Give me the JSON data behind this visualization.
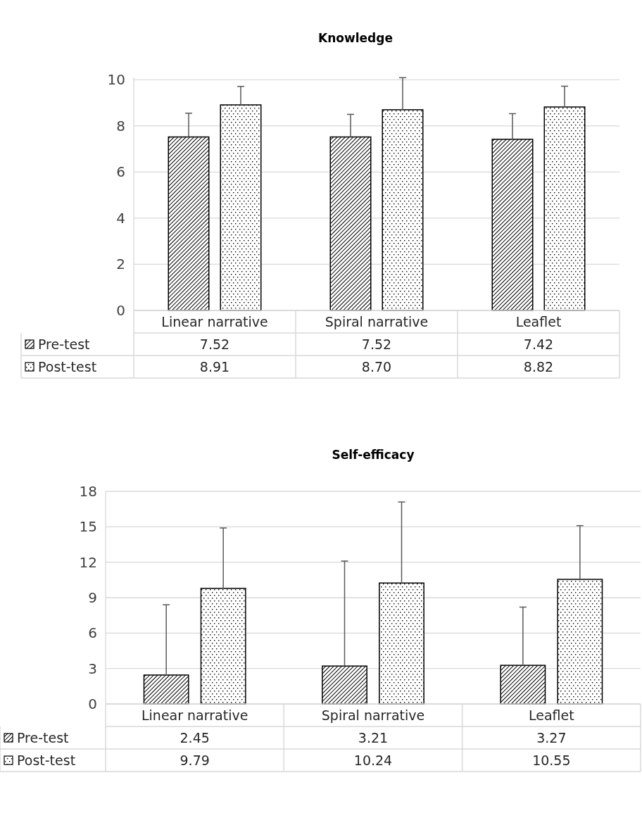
{
  "chart_data": [
    {
      "type": "bar",
      "title": "Knowledge",
      "categories": [
        "Linear narrative",
        "Spiral narrative",
        "Leaflet"
      ],
      "ylim": [
        0,
        10.1
      ],
      "yticks": [
        0,
        2,
        4,
        6,
        8,
        10
      ],
      "grid": "y",
      "legend": "bottom",
      "series": [
        {
          "name": "Pre-test",
          "color": "#000000",
          "values": [
            7.52,
            7.52,
            7.42
          ],
          "value_labels": [
            "7.52",
            "7.52",
            "7.42"
          ],
          "errors": [
            [
              7.52,
              8.55
            ],
            [
              7.52,
              8.5
            ],
            [
              7.42,
              8.53
            ]
          ]
        },
        {
          "name": "Post-test",
          "color": "#000000",
          "values": [
            8.91,
            8.7,
            8.82
          ],
          "value_labels": [
            "8.91",
            "8.70",
            "8.82"
          ],
          "errors": [
            [
              8.91,
              9.71
            ],
            [
              8.7,
              10.09
            ],
            [
              8.82,
              9.72
            ]
          ]
        }
      ]
    },
    {
      "type": "bar",
      "title": "Self-efficacy",
      "categories": [
        "Linear narrative",
        "Spiral narrative",
        "Leaflet"
      ],
      "ylim": [
        0,
        18
      ],
      "yticks": [
        0,
        3,
        6,
        9,
        12,
        15,
        18
      ],
      "grid": "y",
      "legend": "bottom",
      "series": [
        {
          "name": "Pre-test",
          "color": "#000000",
          "values": [
            2.45,
            3.21,
            3.27
          ],
          "value_labels": [
            "2.45",
            "3.21",
            "3.27"
          ],
          "errors": [
            [
              2.45,
              8.4
            ],
            [
              3.21,
              12.1
            ],
            [
              3.27,
              8.2
            ]
          ]
        },
        {
          "name": "Post-test",
          "color": "#000000",
          "values": [
            9.79,
            10.24,
            10.55
          ],
          "value_labels": [
            "9.79",
            "10.24",
            "10.55"
          ],
          "errors": [
            [
              9.79,
              14.9
            ],
            [
              10.24,
              17.1
            ],
            [
              10.55,
              15.1
            ]
          ]
        }
      ]
    }
  ]
}
